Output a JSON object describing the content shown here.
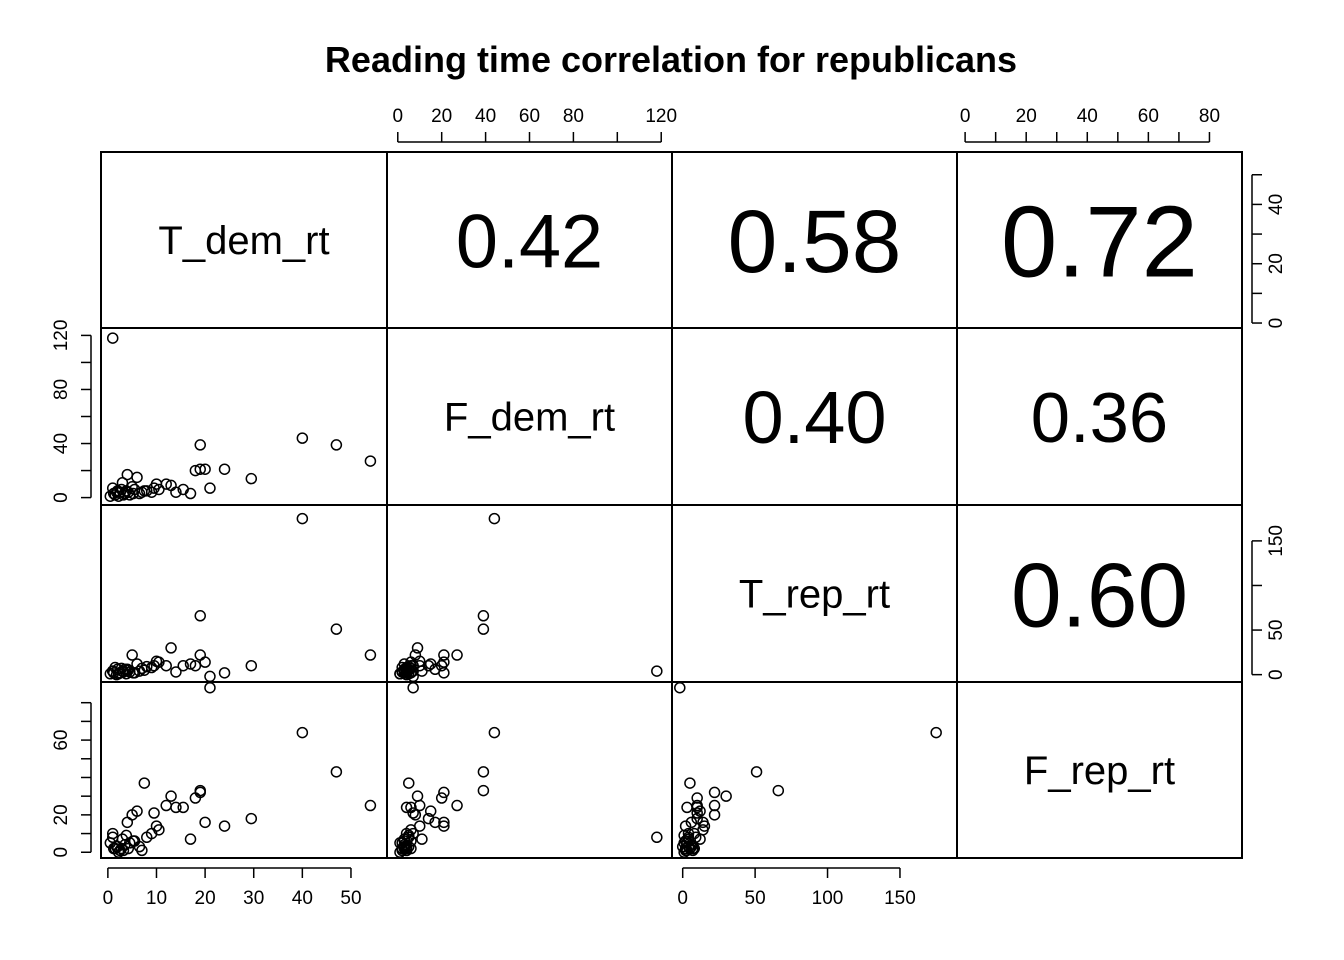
{
  "chart_data": {
    "type": "scatter",
    "title": "Reading time correlation for republicans",
    "variables": [
      "T_dem_rt",
      "F_dem_rt",
      "T_rep_rt",
      "F_rep_rt"
    ],
    "correlations": [
      {
        "row": 0,
        "col": 1,
        "label": "0.42",
        "value": 0.42
      },
      {
        "row": 0,
        "col": 2,
        "label": "0.58",
        "value": 0.58
      },
      {
        "row": 0,
        "col": 3,
        "label": "0.72",
        "value": 0.72
      },
      {
        "row": 1,
        "col": 2,
        "label": "0.40",
        "value": 0.4
      },
      {
        "row": 1,
        "col": 3,
        "label": "0.36",
        "value": 0.36
      },
      {
        "row": 2,
        "col": 3,
        "label": "0.60",
        "value": 0.6
      }
    ],
    "axes": {
      "T_dem_rt": {
        "range": [
          -1,
          57
        ],
        "ticks": [
          0,
          10,
          20,
          30,
          40,
          50
        ],
        "labeled": [
          0,
          10,
          20,
          30,
          40,
          50
        ],
        "side": "bottom"
      },
      "F_dem_rt": {
        "range": [
          -4,
          124
        ],
        "ticks": [
          0,
          20,
          40,
          60,
          80,
          100,
          120
        ],
        "labeled": [
          0,
          20,
          40,
          60,
          80,
          120
        ],
        "side": "top"
      },
      "T_rep_rt": {
        "range": [
          -6,
          188
        ],
        "ticks": [
          0,
          50,
          100,
          150
        ],
        "labeled": [
          0,
          50,
          100,
          150
        ],
        "side": "bottom"
      },
      "F_rep_rt": {
        "range": [
          -2,
          90
        ],
        "ticks": [
          0,
          10,
          20,
          30,
          40,
          50,
          60,
          70,
          80
        ],
        "labeled": [
          0,
          20,
          40,
          60,
          80
        ],
        "side": "top"
      }
    },
    "left_axes": [
      {
        "row": 1,
        "var": "F_dem_rt",
        "ticks": [
          0,
          20,
          40,
          60,
          80,
          100,
          120
        ],
        "labeled": [
          0,
          40,
          80,
          120
        ]
      },
      {
        "row": 3,
        "var": "F_rep_rt",
        "ticks": [
          0,
          10,
          20,
          30,
          40,
          50,
          60,
          70,
          80
        ],
        "labeled": [
          0,
          20,
          60
        ]
      }
    ],
    "right_axes": [
      {
        "row": 0,
        "var": "T_dem_rt",
        "ticks": [
          0,
          10,
          20,
          30,
          40,
          50
        ],
        "labeled": [
          0,
          20,
          40
        ]
      },
      {
        "row": 2,
        "var": "T_rep_rt",
        "ticks": [
          0,
          50,
          100,
          150
        ],
        "labeled": [
          0,
          50,
          150
        ]
      }
    ],
    "observations": [
      {
        "T_dem_rt": 1.0,
        "F_dem_rt": 118,
        "T_rep_rt": 4,
        "F_rep_rt": 8
      },
      {
        "T_dem_rt": 40,
        "F_dem_rt": 44,
        "T_rep_rt": 175,
        "F_rep_rt": 64
      },
      {
        "T_dem_rt": 47,
        "F_dem_rt": 39,
        "T_rep_rt": 51,
        "F_rep_rt": 43
      },
      {
        "T_dem_rt": 54,
        "F_dem_rt": 27,
        "T_rep_rt": 22,
        "F_rep_rt": 25
      },
      {
        "T_dem_rt": 19,
        "F_dem_rt": 39,
        "T_rep_rt": 66,
        "F_rep_rt": 33
      },
      {
        "T_dem_rt": 21,
        "F_dem_rt": 7,
        "T_rep_rt": -2,
        "F_rep_rt": 88
      },
      {
        "T_dem_rt": 24,
        "F_dem_rt": 21,
        "T_rep_rt": 2,
        "F_rep_rt": 14
      },
      {
        "T_dem_rt": 29.5,
        "F_dem_rt": 14,
        "T_rep_rt": 10,
        "F_rep_rt": 18
      },
      {
        "T_dem_rt": 19,
        "F_dem_rt": 21,
        "T_rep_rt": 22,
        "F_rep_rt": 32
      },
      {
        "T_dem_rt": 20,
        "F_dem_rt": 21,
        "T_rep_rt": 14,
        "F_rep_rt": 16
      },
      {
        "T_dem_rt": 18,
        "F_dem_rt": 20,
        "T_rep_rt": 10,
        "F_rep_rt": 29
      },
      {
        "T_dem_rt": 17,
        "F_dem_rt": 3,
        "T_rep_rt": 12,
        "F_rep_rt": 7
      },
      {
        "T_dem_rt": 15.5,
        "F_dem_rt": 6,
        "T_rep_rt": 10,
        "F_rep_rt": 24
      },
      {
        "T_dem_rt": 14,
        "F_dem_rt": 4,
        "T_rep_rt": 3,
        "F_rep_rt": 24
      },
      {
        "T_dem_rt": 13,
        "F_dem_rt": 9,
        "T_rep_rt": 30,
        "F_rep_rt": 30
      },
      {
        "T_dem_rt": 12,
        "F_dem_rt": 10,
        "T_rep_rt": 10,
        "F_rep_rt": 25
      },
      {
        "T_dem_rt": 10,
        "F_dem_rt": 10,
        "T_rep_rt": 15,
        "F_rep_rt": 14
      },
      {
        "T_dem_rt": 9.5,
        "F_dem_rt": 7,
        "T_rep_rt": 10,
        "F_rep_rt": 21
      },
      {
        "T_dem_rt": 7.5,
        "F_dem_rt": 5,
        "T_rep_rt": 5,
        "F_rep_rt": 37
      },
      {
        "T_dem_rt": 6,
        "F_dem_rt": 15,
        "T_rep_rt": 12,
        "F_rep_rt": 22
      },
      {
        "T_dem_rt": 5,
        "F_dem_rt": 8,
        "T_rep_rt": 22,
        "F_rep_rt": 20
      },
      {
        "T_dem_rt": 4,
        "F_dem_rt": 17,
        "T_rep_rt": 6,
        "F_rep_rt": 16
      },
      {
        "T_dem_rt": 3,
        "F_dem_rt": 11,
        "T_rep_rt": 4,
        "F_rep_rt": 7
      },
      {
        "T_dem_rt": 2,
        "F_dem_rt": 5,
        "T_rep_rt": 6,
        "F_rep_rt": 3
      },
      {
        "T_dem_rt": 1,
        "F_dem_rt": 7,
        "T_rep_rt": 4,
        "F_rep_rt": 10
      },
      {
        "T_dem_rt": 0.5,
        "F_dem_rt": 1,
        "T_rep_rt": 1,
        "F_rep_rt": 5
      },
      {
        "T_dem_rt": 1.5,
        "F_dem_rt": 2,
        "T_rep_rt": 8,
        "F_rep_rt": 2
      },
      {
        "T_dem_rt": 2.5,
        "F_dem_rt": 4,
        "T_rep_rt": 2,
        "F_rep_rt": 1
      },
      {
        "T_dem_rt": 3.5,
        "F_dem_rt": 3,
        "T_rep_rt": 6,
        "F_rep_rt": 4
      },
      {
        "T_dem_rt": 4.5,
        "F_dem_rt": 2,
        "T_rep_rt": 3,
        "F_rep_rt": 5
      },
      {
        "T_dem_rt": 5.5,
        "F_dem_rt": 6,
        "T_rep_rt": 2,
        "F_rep_rt": 6
      },
      {
        "T_dem_rt": 6.5,
        "F_dem_rt": 3,
        "T_rep_rt": 4,
        "F_rep_rt": 3
      },
      {
        "T_dem_rt": 7,
        "F_dem_rt": 4,
        "T_rep_rt": 7,
        "F_rep_rt": 1
      },
      {
        "T_dem_rt": 8,
        "F_dem_rt": 5,
        "T_rep_rt": 9,
        "F_rep_rt": 8
      },
      {
        "T_dem_rt": 9,
        "F_dem_rt": 4,
        "T_rep_rt": 8,
        "F_rep_rt": 10
      },
      {
        "T_dem_rt": 10.5,
        "F_dem_rt": 6,
        "T_rep_rt": 14,
        "F_rep_rt": 12
      },
      {
        "T_dem_rt": 1.2,
        "F_dem_rt": 3,
        "T_rep_rt": 2,
        "F_rep_rt": 2
      },
      {
        "T_dem_rt": 2.2,
        "F_dem_rt": 1,
        "T_rep_rt": 1,
        "F_rep_rt": 0
      },
      {
        "T_dem_rt": 3.2,
        "F_dem_rt": 2,
        "T_rep_rt": 3,
        "F_rep_rt": 1
      },
      {
        "T_dem_rt": 4.2,
        "F_dem_rt": 4,
        "T_rep_rt": 5,
        "F_rep_rt": 2
      },
      {
        "T_dem_rt": 5.2,
        "F_dem_rt": 3,
        "T_rep_rt": 2,
        "F_rep_rt": 6
      },
      {
        "T_dem_rt": 3.8,
        "F_dem_rt": 5,
        "T_rep_rt": 1,
        "F_rep_rt": 9
      },
      {
        "T_dem_rt": 2.8,
        "F_dem_rt": 6,
        "T_rep_rt": 7,
        "F_rep_rt": 2
      },
      {
        "T_dem_rt": 1.8,
        "F_dem_rt": 4,
        "T_rep_rt": 0,
        "F_rep_rt": 3
      }
    ]
  }
}
